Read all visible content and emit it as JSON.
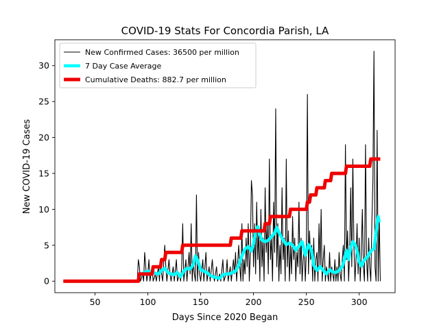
{
  "chart_data": {
    "type": "line",
    "title": "COVID-19 Stats For Concordia Parish, LA",
    "xlabel": "Days Since 2020 Began",
    "ylabel": "New COVID-19 Cases",
    "xlim": [
      12,
      334
    ],
    "ylim": [
      -1.6,
      33.6
    ],
    "xticks": [
      50,
      100,
      150,
      200,
      250,
      300
    ],
    "yticks": [
      0,
      5,
      10,
      15,
      20,
      25,
      30
    ],
    "legend_position": "top-left",
    "grid": false,
    "series": [
      {
        "name": "New Confirmed Cases: 36500 per million",
        "color": "#000000",
        "style": "thin",
        "points": [
          [
            20,
            0
          ],
          [
            90,
            0
          ],
          [
            91,
            3
          ],
          [
            92,
            2
          ],
          [
            93,
            0
          ],
          [
            95,
            1
          ],
          [
            96,
            0
          ],
          [
            97,
            4
          ],
          [
            98,
            2
          ],
          [
            99,
            0
          ],
          [
            100,
            1
          ],
          [
            101,
            3
          ],
          [
            102,
            0
          ],
          [
            104,
            2
          ],
          [
            105,
            0
          ],
          [
            107,
            1
          ],
          [
            108,
            0
          ],
          [
            110,
            2
          ],
          [
            111,
            0
          ],
          [
            112,
            3
          ],
          [
            113,
            1
          ],
          [
            114,
            0
          ],
          [
            116,
            5
          ],
          [
            117,
            2
          ],
          [
            118,
            0
          ],
          [
            120,
            3
          ],
          [
            121,
            1
          ],
          [
            122,
            0
          ],
          [
            124,
            2
          ],
          [
            125,
            0
          ],
          [
            127,
            3
          ],
          [
            128,
            0
          ],
          [
            130,
            1
          ],
          [
            131,
            0
          ],
          [
            132,
            2
          ],
          [
            133,
            8
          ],
          [
            134,
            0
          ],
          [
            136,
            3
          ],
          [
            137,
            0
          ],
          [
            139,
            4
          ],
          [
            140,
            1
          ],
          [
            141,
            8
          ],
          [
            142,
            0
          ],
          [
            143,
            3
          ],
          [
            144,
            1
          ],
          [
            145,
            0
          ],
          [
            146,
            12
          ],
          [
            147,
            0
          ],
          [
            148,
            4
          ],
          [
            149,
            1
          ],
          [
            150,
            0
          ],
          [
            152,
            3
          ],
          [
            153,
            0
          ],
          [
            155,
            4
          ],
          [
            156,
            0
          ],
          [
            158,
            2
          ],
          [
            159,
            0
          ],
          [
            161,
            3
          ],
          [
            162,
            1
          ],
          [
            163,
            0
          ],
          [
            165,
            2
          ],
          [
            166,
            0
          ],
          [
            168,
            1
          ],
          [
            169,
            0
          ],
          [
            171,
            3
          ],
          [
            172,
            0
          ],
          [
            174,
            1
          ],
          [
            175,
            3
          ],
          [
            176,
            0
          ],
          [
            178,
            2
          ],
          [
            179,
            0
          ],
          [
            181,
            3
          ],
          [
            182,
            1
          ],
          [
            183,
            4
          ],
          [
            184,
            0
          ],
          [
            186,
            5
          ],
          [
            187,
            2
          ],
          [
            188,
            0
          ],
          [
            189,
            8
          ],
          [
            190,
            0
          ],
          [
            191,
            3
          ],
          [
            192,
            1
          ],
          [
            193,
            6
          ],
          [
            194,
            2
          ],
          [
            195,
            8
          ],
          [
            196,
            0
          ],
          [
            197,
            4
          ],
          [
            198,
            14
          ],
          [
            199,
            12
          ],
          [
            200,
            2
          ],
          [
            201,
            8
          ],
          [
            202,
            1
          ],
          [
            203,
            11
          ],
          [
            204,
            3
          ],
          [
            205,
            7
          ],
          [
            206,
            0
          ],
          [
            207,
            10
          ],
          [
            208,
            2
          ],
          [
            209,
            6
          ],
          [
            210,
            0
          ],
          [
            211,
            13
          ],
          [
            212,
            4
          ],
          [
            213,
            8
          ],
          [
            214,
            1
          ],
          [
            215,
            17
          ],
          [
            216,
            3
          ],
          [
            217,
            6
          ],
          [
            218,
            0
          ],
          [
            219,
            11
          ],
          [
            220,
            4
          ],
          [
            221,
            24
          ],
          [
            222,
            2
          ],
          [
            223,
            8
          ],
          [
            224,
            0
          ],
          [
            225,
            5
          ],
          [
            226,
            1
          ],
          [
            227,
            13
          ],
          [
            228,
            3
          ],
          [
            229,
            6
          ],
          [
            230,
            0
          ],
          [
            231,
            17
          ],
          [
            232,
            2
          ],
          [
            233,
            7
          ],
          [
            234,
            0
          ],
          [
            235,
            5
          ],
          [
            236,
            1
          ],
          [
            237,
            9
          ],
          [
            238,
            3
          ],
          [
            239,
            6
          ],
          [
            240,
            0
          ],
          [
            241,
            4
          ],
          [
            242,
            2
          ],
          [
            243,
            11
          ],
          [
            244,
            1
          ],
          [
            245,
            6
          ],
          [
            246,
            0
          ],
          [
            247,
            3
          ],
          [
            248,
            5
          ],
          [
            249,
            0
          ],
          [
            250,
            4
          ],
          [
            251,
            26
          ],
          [
            252,
            1
          ],
          [
            253,
            7
          ],
          [
            254,
            3
          ],
          [
            255,
            5
          ],
          [
            256,
            0
          ],
          [
            257,
            6
          ],
          [
            258,
            0
          ],
          [
            259,
            3
          ],
          [
            260,
            4
          ],
          [
            261,
            0
          ],
          [
            262,
            8
          ],
          [
            263,
            2
          ],
          [
            264,
            10
          ],
          [
            265,
            0
          ],
          [
            266,
            3
          ],
          [
            267,
            5
          ],
          [
            268,
            0
          ],
          [
            269,
            2
          ],
          [
            270,
            1
          ],
          [
            271,
            0
          ],
          [
            272,
            4
          ],
          [
            273,
            0
          ],
          [
            274,
            2
          ],
          [
            275,
            1
          ],
          [
            276,
            0
          ],
          [
            277,
            3
          ],
          [
            278,
            0
          ],
          [
            279,
            2
          ],
          [
            280,
            0
          ],
          [
            281,
            4
          ],
          [
            282,
            1
          ],
          [
            283,
            0
          ],
          [
            284,
            3
          ],
          [
            285,
            5
          ],
          [
            286,
            0
          ],
          [
            287,
            19
          ],
          [
            288,
            3
          ],
          [
            289,
            7
          ],
          [
            290,
            0
          ],
          [
            291,
            4
          ],
          [
            292,
            13
          ],
          [
            293,
            2
          ],
          [
            294,
            17
          ],
          [
            295,
            5
          ],
          [
            296,
            0
          ],
          [
            297,
            3
          ],
          [
            298,
            8
          ],
          [
            299,
            1
          ],
          [
            300,
            6
          ],
          [
            301,
            0
          ],
          [
            302,
            4
          ],
          [
            303,
            10
          ],
          [
            304,
            2
          ],
          [
            305,
            0
          ],
          [
            306,
            19
          ],
          [
            307,
            3
          ],
          [
            308,
            0
          ],
          [
            309,
            6
          ],
          [
            310,
            2
          ],
          [
            311,
            0
          ],
          [
            312,
            8
          ],
          [
            313,
            14
          ],
          [
            314,
            32
          ],
          [
            315,
            2
          ],
          [
            316,
            0
          ],
          [
            317,
            21
          ],
          [
            318,
            0
          ],
          [
            319,
            9
          ],
          [
            320,
            0
          ]
        ]
      },
      {
        "name": "7 Day Case Average",
        "color": "#00ffff",
        "style": "medium",
        "points": [
          [
            91,
            0.4
          ],
          [
            95,
            1.1
          ],
          [
            98,
            1.3
          ],
          [
            101,
            1.4
          ],
          [
            104,
            1.3
          ],
          [
            107,
            1.1
          ],
          [
            110,
            1.0
          ],
          [
            113,
            1.5
          ],
          [
            116,
            1.8
          ],
          [
            119,
            1.2
          ],
          [
            122,
            1.0
          ],
          [
            125,
            0.9
          ],
          [
            128,
            1.2
          ],
          [
            131,
            0.6
          ],
          [
            134,
            1.4
          ],
          [
            137,
            1.8
          ],
          [
            140,
            1.7
          ],
          [
            143,
            2.3
          ],
          [
            145,
            3.5
          ],
          [
            147,
            3.0
          ],
          [
            150,
            1.6
          ],
          [
            153,
            1.4
          ],
          [
            156,
            1.2
          ],
          [
            159,
            0.8
          ],
          [
            162,
            0.6
          ],
          [
            165,
            0.5
          ],
          [
            168,
            0.4
          ],
          [
            171,
            0.9
          ],
          [
            174,
            1.0
          ],
          [
            177,
            1.0
          ],
          [
            180,
            1.2
          ],
          [
            183,
            1.4
          ],
          [
            186,
            2.2
          ],
          [
            189,
            3.5
          ],
          [
            192,
            4.5
          ],
          [
            195,
            4.8
          ],
          [
            198,
            4.2
          ],
          [
            200,
            5.2
          ],
          [
            202,
            6.8
          ],
          [
            204,
            7.6
          ],
          [
            206,
            6.5
          ],
          [
            208,
            5.7
          ],
          [
            211,
            5.5
          ],
          [
            214,
            5.7
          ],
          [
            217,
            6.2
          ],
          [
            220,
            6.7
          ],
          [
            222,
            7.5
          ],
          [
            225,
            6.5
          ],
          [
            228,
            5.7
          ],
          [
            231,
            5.1
          ],
          [
            234,
            5.3
          ],
          [
            237,
            5.0
          ],
          [
            240,
            4.3
          ],
          [
            243,
            4.9
          ],
          [
            246,
            5.5
          ],
          [
            249,
            3.6
          ],
          [
            252,
            5.1
          ],
          [
            255,
            4.3
          ],
          [
            257,
            2.2
          ],
          [
            260,
            1.5
          ],
          [
            263,
            2.0
          ],
          [
            266,
            1.5
          ],
          [
            269,
            1.0
          ],
          [
            272,
            1.6
          ],
          [
            275,
            1.3
          ],
          [
            278,
            1.2
          ],
          [
            281,
            1.5
          ],
          [
            284,
            2.0
          ],
          [
            286,
            3.0
          ],
          [
            288,
            4.3
          ],
          [
            290,
            3.0
          ],
          [
            292,
            4.7
          ],
          [
            294,
            5.5
          ],
          [
            296,
            5.1
          ],
          [
            298,
            4.3
          ],
          [
            300,
            2.7
          ],
          [
            302,
            2.1
          ],
          [
            305,
            3.0
          ],
          [
            308,
            3.4
          ],
          [
            311,
            4.2
          ],
          [
            314,
            4.5
          ],
          [
            316,
            6.8
          ],
          [
            318,
            9.0
          ],
          [
            319,
            8.2
          ]
        ]
      },
      {
        "name": "Cumulative Deaths: 882.7 per million",
        "color": "#ee0000",
        "style": "thick",
        "points": [
          [
            20,
            0
          ],
          [
            91,
            0
          ],
          [
            92,
            1
          ],
          [
            104,
            1
          ],
          [
            105,
            2
          ],
          [
            112,
            2
          ],
          [
            113,
            3
          ],
          [
            116,
            3
          ],
          [
            117,
            4
          ],
          [
            132,
            4
          ],
          [
            133,
            5
          ],
          [
            178,
            5
          ],
          [
            179,
            6
          ],
          [
            188,
            6
          ],
          [
            189,
            7
          ],
          [
            210,
            7
          ],
          [
            211,
            8
          ],
          [
            215,
            8
          ],
          [
            216,
            9
          ],
          [
            234,
            9
          ],
          [
            235,
            10
          ],
          [
            250,
            10
          ],
          [
            251,
            11
          ],
          [
            253,
            11
          ],
          [
            254,
            12
          ],
          [
            259,
            12
          ],
          [
            260,
            13
          ],
          [
            267,
            13
          ],
          [
            268,
            14
          ],
          [
            273,
            14
          ],
          [
            274,
            15
          ],
          [
            287,
            15
          ],
          [
            288,
            16
          ],
          [
            310,
            16
          ],
          [
            311,
            17
          ],
          [
            320,
            17
          ]
        ]
      }
    ]
  }
}
